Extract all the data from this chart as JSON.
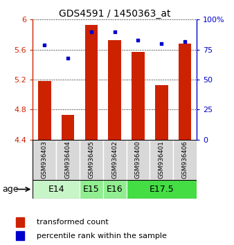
{
  "title": "GDS4591 / 1450363_at",
  "samples": [
    "GSM936403",
    "GSM936404",
    "GSM936405",
    "GSM936402",
    "GSM936400",
    "GSM936401",
    "GSM936406"
  ],
  "transformed_counts": [
    5.18,
    4.73,
    5.93,
    5.73,
    5.57,
    5.13,
    5.68
  ],
  "percentile_ranks": [
    79,
    68,
    90,
    90,
    83,
    80,
    82
  ],
  "age_group_data": [
    {
      "label": "E14",
      "indices": [
        0,
        1
      ],
      "color": "#c8f5c8"
    },
    {
      "label": "E15",
      "indices": [
        2
      ],
      "color": "#90ee90"
    },
    {
      "label": "E16",
      "indices": [
        3
      ],
      "color": "#90ee90"
    },
    {
      "label": "E17.5",
      "indices": [
        4,
        5,
        6
      ],
      "color": "#44dd44"
    }
  ],
  "bar_color": "#cc2200",
  "dot_color": "#0000cc",
  "ylim_left": [
    4.4,
    6.0
  ],
  "ylim_right": [
    0,
    100
  ],
  "yticks_left": [
    4.4,
    4.8,
    5.2,
    5.6,
    6.0
  ],
  "ytick_labels_left": [
    "4.4",
    "4.8",
    "5.2",
    "5.6",
    "6"
  ],
  "yticks_right": [
    0,
    25,
    50,
    75,
    100
  ],
  "ytick_labels_right": [
    "0",
    "25",
    "50",
    "75",
    "100%"
  ],
  "bar_width": 0.55,
  "background_color": "#ffffff",
  "title_fontsize": 10,
  "tick_fontsize": 8,
  "legend_fontsize": 8,
  "sample_fontsize": 6.5,
  "age_fontsize": 9
}
